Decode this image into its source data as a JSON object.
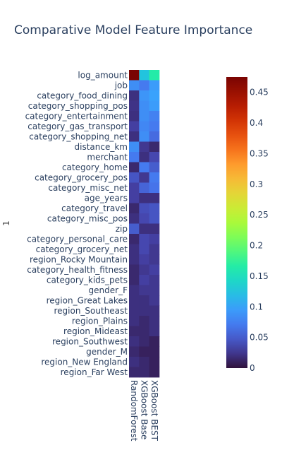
{
  "chart_data": {
    "type": "heatmap",
    "title": "Comparative Model Feature Importance",
    "ylabel": "1",
    "xlabel": "",
    "x_categories": [
      "RandomForest",
      "XGBoost Base",
      "XGBoost BEST"
    ],
    "y_categories": [
      "log_amount",
      "job",
      "category_food_dining",
      "category_shopping_pos",
      "category_entertainment",
      "category_gas_transport",
      "category_shopping_net",
      "distance_km",
      "merchant",
      "category_home",
      "category_grocery_pos",
      "category_misc_net",
      "age_years",
      "category_travel",
      "category_misc_pos",
      "zip",
      "category_personal_care",
      "category_grocery_net",
      "region_Rocky Mountain",
      "category_health_fitness",
      "category_kids_pets",
      "gender_F",
      "region_Great Lakes",
      "region_Southeast",
      "region_Plains",
      "region_Mideast",
      "region_Southwest",
      "gender_M",
      "region_New England",
      "region_Far West"
    ],
    "z": [
      [
        0.475,
        0.125,
        0.165
      ],
      [
        0.085,
        0.07,
        0.095
      ],
      [
        0.02,
        0.09,
        0.1
      ],
      [
        0.022,
        0.085,
        0.095
      ],
      [
        0.02,
        0.085,
        0.075
      ],
      [
        0.03,
        0.08,
        0.07
      ],
      [
        0.02,
        0.085,
        0.06
      ],
      [
        0.085,
        0.025,
        0.015
      ],
      [
        0.07,
        0.02,
        0.035
      ],
      [
        0.015,
        0.07,
        0.05
      ],
      [
        0.045,
        0.025,
        0.07
      ],
      [
        0.03,
        0.055,
        0.065
      ],
      [
        0.03,
        0.02,
        0.02
      ],
      [
        0.015,
        0.04,
        0.045
      ],
      [
        0.02,
        0.035,
        0.045
      ],
      [
        0.05,
        0.02,
        0.02
      ],
      [
        0.015,
        0.035,
        0.03
      ],
      [
        0.02,
        0.035,
        0.025
      ],
      [
        0.02,
        0.03,
        0.025
      ],
      [
        0.015,
        0.025,
        0.03
      ],
      [
        0.015,
        0.03,
        0.025
      ],
      [
        0.02,
        0.025,
        0.025
      ],
      [
        0.02,
        0.02,
        0.025
      ],
      [
        0.02,
        0.02,
        0.02
      ],
      [
        0.02,
        0.015,
        0.02
      ],
      [
        0.015,
        0.015,
        0.02
      ],
      [
        0.02,
        0.015,
        0.01
      ],
      [
        0.015,
        0.01,
        0.01
      ],
      [
        0.02,
        0.015,
        0.01
      ],
      [
        0.015,
        0.015,
        0.01
      ]
    ],
    "colorscale": "Turbo",
    "zmin": 0,
    "zmax": 0.475,
    "colorbar_ticks": [
      0,
      0.05,
      0.1,
      0.15,
      0.2,
      0.25,
      0.3,
      0.35,
      0.4,
      0.45
    ],
    "colorbar_tick_labels": [
      "0",
      "0.05",
      "0.1",
      "0.15",
      "0.2",
      "0.25",
      "0.3",
      "0.35",
      "0.4",
      "0.45"
    ]
  }
}
